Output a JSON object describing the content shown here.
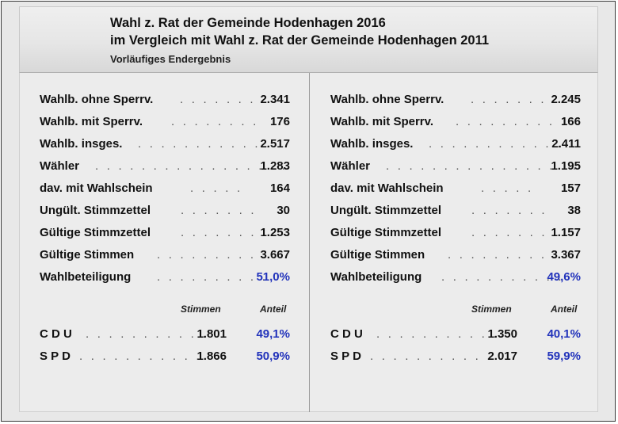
{
  "header": {
    "line1": "Wahl z. Rat der Gemeinde Hodenhagen 2016",
    "line2": "im Vergleich mit Wahl z. Rat der Gemeinde Hodenhagen 2011",
    "subtitle": "Vorläufiges Endergebnis"
  },
  "left": {
    "stats": [
      {
        "label": "Wahlb. ohne Sperrv.",
        "dots": ". . . . . . .",
        "value": "2.341"
      },
      {
        "label": "Wahlb. mit Sperrv.",
        "dots": ". . . . . . . .",
        "value": "176"
      },
      {
        "label": "Wahlb. insges.",
        "dots": ". . . . . . . . . . . .",
        "value": "2.517"
      },
      {
        "label": "Wähler",
        "dots": ". . . . . . . . . . . . . . . . .",
        "value": "1.283"
      },
      {
        "label": "dav. mit Wahlschein",
        "dots": ". . . . .",
        "value": "164"
      },
      {
        "label": "Ungült. Stimmzettel",
        "dots": ". . . . . . .",
        "value": "30"
      },
      {
        "label": "Gültige Stimmzettel",
        "dots": ". . . . . . .",
        "value": "1.253"
      },
      {
        "label": "Gültige Stimmen",
        "dots": ". . . . . . . . . .",
        "value": "3.667"
      },
      {
        "label": "Wahlbeteiligung",
        "dots": ". . . . . . . . . .",
        "value": "51,0%"
      }
    ],
    "col_stimmen": "Stimmen",
    "col_anteil": "Anteil",
    "parties": [
      {
        "label": "C D U",
        "dots": ". . . . . . . . . . .",
        "votes": "1.801",
        "share": "49,1%"
      },
      {
        "label": "S P D",
        "dots": ". . . . . . . . . . . .",
        "votes": "1.866",
        "share": "50,9%"
      }
    ]
  },
  "right": {
    "stats": [
      {
        "label": "Wahlb. ohne Sperrv.",
        "dots": ". . . . . . .",
        "value": "2.245"
      },
      {
        "label": "Wahlb. mit Sperrv.",
        "dots": ". . . . . . . . .",
        "value": "166"
      },
      {
        "label": "Wahlb. insges.",
        "dots": ". . . . . . . . . . . .",
        "value": "2.411"
      },
      {
        "label": "Wähler",
        "dots": ". . . . . . . . . . . . . . . . .",
        "value": "1.195"
      },
      {
        "label": "dav. mit Wahlschein",
        "dots": ". . . . .",
        "value": "157"
      },
      {
        "label": "Ungült. Stimmzettel",
        "dots": ". . . . . . .",
        "value": "38"
      },
      {
        "label": "Gültige Stimmzettel",
        "dots": ". . . . . . .",
        "value": "1.157"
      },
      {
        "label": "Gültige Stimmen",
        "dots": ". . . . . . . . . .",
        "value": "3.367"
      },
      {
        "label": "Wahlbeteiligung",
        "dots": ". . . . . . . . . . .",
        "value": "49,6%"
      }
    ],
    "col_stimmen": "Stimmen",
    "col_anteil": "Anteil",
    "parties": [
      {
        "label": "C D U",
        "dots": ". . . . . . . . . . .",
        "votes": "1.350",
        "share": "40,1%"
      },
      {
        "label": "S P D",
        "dots": ". . . . . . . . . . . .",
        "votes": "2.017",
        "share": "59,9%"
      }
    ]
  }
}
